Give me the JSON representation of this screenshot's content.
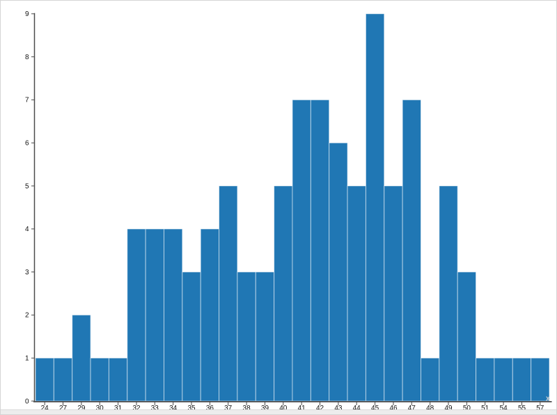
{
  "chart_data": {
    "type": "bar",
    "title": "",
    "xlabel": "x",
    "ylabel": "",
    "categories": [
      "24",
      "27",
      "29",
      "30",
      "31",
      "32",
      "33",
      "34",
      "35",
      "36",
      "37",
      "38",
      "39",
      "40",
      "41",
      "42",
      "43",
      "44",
      "45",
      "46",
      "47",
      "48",
      "49",
      "50",
      "51",
      "54",
      "55",
      "57"
    ],
    "values": [
      1,
      1,
      2,
      1,
      1,
      4,
      4,
      4,
      3,
      4,
      5,
      3,
      3,
      5,
      7,
      7,
      6,
      5,
      9,
      5,
      7,
      1,
      5,
      3,
      1,
      1,
      1,
      1
    ],
    "y_ticks": [
      0,
      1,
      2,
      3,
      4,
      5,
      6,
      7,
      8,
      9
    ],
    "ylim": [
      0,
      9
    ],
    "grid": false,
    "legend": "none",
    "total_count": 100,
    "colors": {
      "bar_fill": "#2077b4",
      "bar_edge": "#ffffff",
      "axis_line": "#4a4a4a",
      "tick_label": "#111111",
      "x_axis_title": "#c7ccd0",
      "frame_border": "#d5d5d5",
      "footer_strip": "#ededed"
    }
  }
}
